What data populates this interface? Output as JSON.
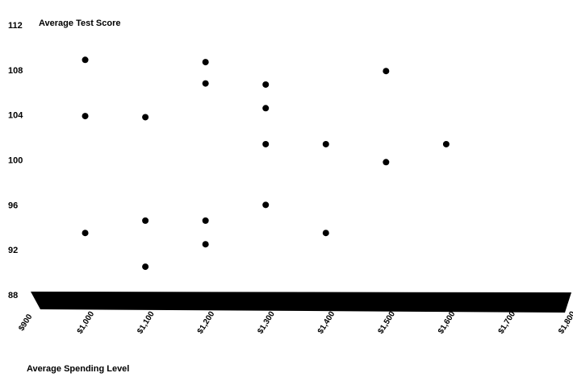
{
  "chart_data": {
    "type": "scatter",
    "ylabel": "Average Test Score",
    "xlabel": "Average Spending Level",
    "xlim": [
      900,
      1800
    ],
    "ylim": [
      88,
      112
    ],
    "x_ticks": [
      900,
      1000,
      1100,
      1200,
      1300,
      1400,
      1500,
      1600,
      1700,
      1800
    ],
    "x_tick_labels": [
      "$900",
      "$1,000",
      "$1,100",
      "$1,200",
      "$1,300",
      "$1,400",
      "$1,500",
      "$1,600",
      "$1,700",
      "$1,800"
    ],
    "y_ticks": [
      88,
      92,
      96,
      100,
      104,
      108,
      112
    ],
    "y_tick_labels": [
      "88",
      "92",
      "96",
      "100",
      "104",
      "108",
      "112"
    ],
    "grid": false,
    "points": [
      {
        "x": 1000,
        "y": 108.9
      },
      {
        "x": 1000,
        "y": 103.9
      },
      {
        "x": 1000,
        "y": 93.5
      },
      {
        "x": 1100,
        "y": 103.8
      },
      {
        "x": 1100,
        "y": 94.6
      },
      {
        "x": 1100,
        "y": 90.5
      },
      {
        "x": 1200,
        "y": 108.7
      },
      {
        "x": 1200,
        "y": 106.8
      },
      {
        "x": 1200,
        "y": 94.6
      },
      {
        "x": 1200,
        "y": 92.5
      },
      {
        "x": 1300,
        "y": 106.7
      },
      {
        "x": 1300,
        "y": 104.6
      },
      {
        "x": 1300,
        "y": 101.4
      },
      {
        "x": 1300,
        "y": 96.0
      },
      {
        "x": 1400,
        "y": 101.4
      },
      {
        "x": 1400,
        "y": 93.5
      },
      {
        "x": 1500,
        "y": 107.9
      },
      {
        "x": 1500,
        "y": 99.8
      },
      {
        "x": 1600,
        "y": 101.4
      }
    ],
    "colors": {
      "point": "#000000",
      "axis_band": "#000000"
    }
  }
}
